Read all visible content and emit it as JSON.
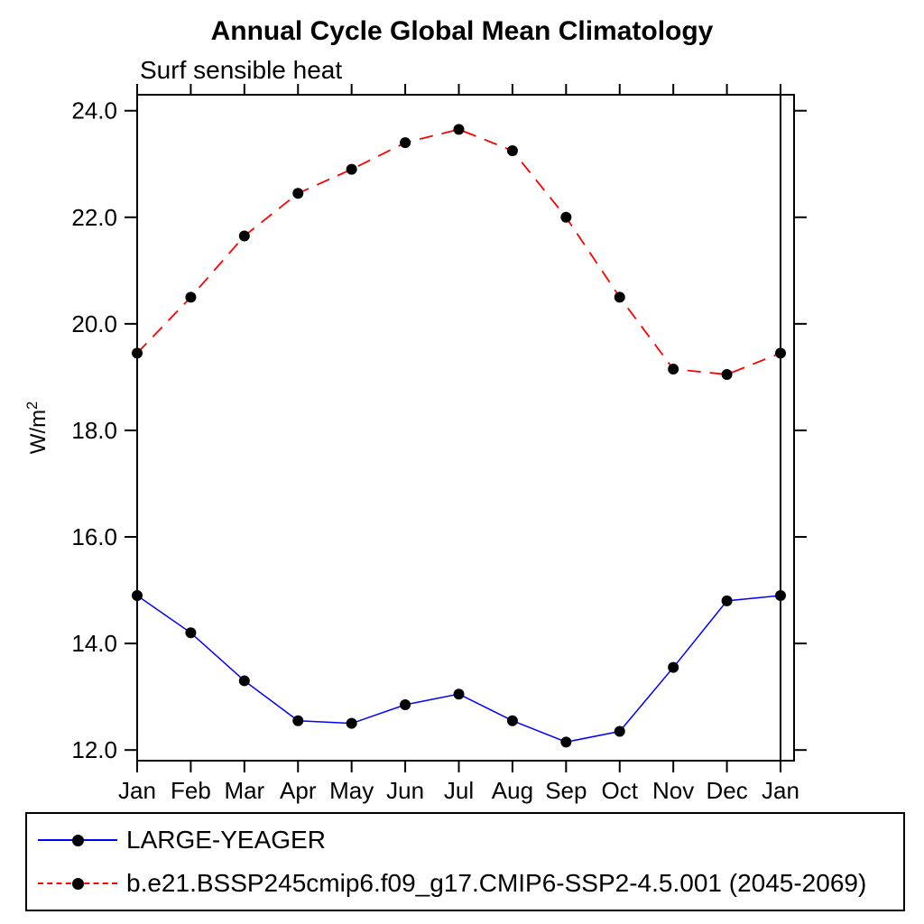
{
  "title": "Annual Cycle Global Mean Climatology",
  "subtitle": "Surf sensible heat",
  "chart_data": {
    "type": "line",
    "x_categories": [
      "Jan",
      "Feb",
      "Mar",
      "Apr",
      "May",
      "Jun",
      "Jul",
      "Aug",
      "Sep",
      "Oct",
      "Nov",
      "Dec",
      "Jan"
    ],
    "ylabel": "W/m",
    "ylabel_superscript": "2",
    "ylim": [
      11.8,
      24.3
    ],
    "yticks": [
      12.0,
      14.0,
      16.0,
      18.0,
      20.0,
      22.0,
      24.0
    ],
    "ytick_labels": [
      "12.0",
      "14.0",
      "16.0",
      "18.0",
      "20.0",
      "22.0",
      "24.0"
    ],
    "grid": false,
    "legend_position": "bottom",
    "frame_color": "#000000",
    "marker_color": "#000000",
    "series": [
      {
        "name": "LARGE-YEAGER",
        "color": "#0000ff",
        "line_style": "solid",
        "marker": "circle",
        "values": [
          14.9,
          14.2,
          13.3,
          12.55,
          12.5,
          12.85,
          13.05,
          12.55,
          12.15,
          12.35,
          13.55,
          14.8,
          14.9
        ]
      },
      {
        "name": "b.e21.BSSP245cmip6.f09_g17.CMIP6-SSP2-4.5.001 (2045-2069)",
        "color": "#ff0000",
        "line_style": "dashed",
        "marker": "circle",
        "values": [
          19.45,
          20.5,
          21.65,
          22.45,
          22.9,
          23.4,
          23.65,
          23.25,
          22.0,
          20.5,
          19.15,
          19.05,
          19.45
        ]
      }
    ]
  }
}
